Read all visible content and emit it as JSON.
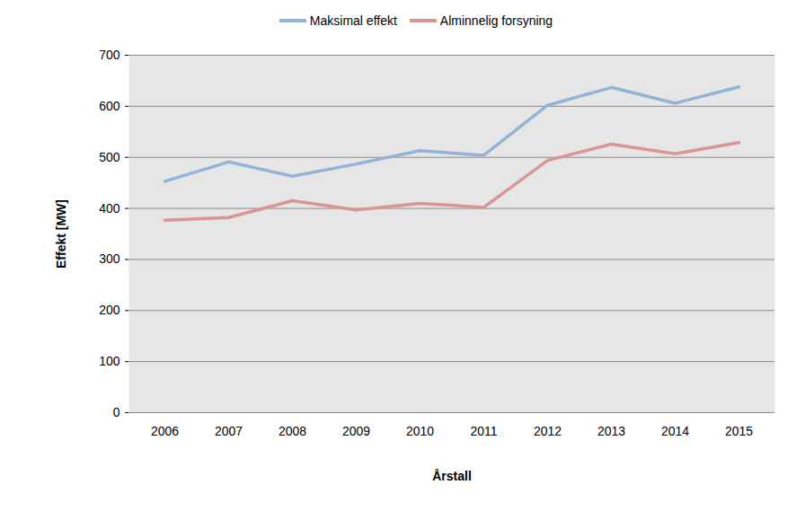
{
  "chart_data": {
    "type": "line",
    "x_label": "Årstall",
    "y_label": "Effekt [MW]",
    "categories": [
      "2006",
      "2007",
      "2008",
      "2009",
      "2010",
      "2011",
      "2012",
      "2013",
      "2014",
      "2015"
    ],
    "series": [
      {
        "name": "Maksimal effekt",
        "color": "#95b3d7",
        "values": [
          453,
          491,
          463,
          487,
          513,
          504,
          602,
          637,
          606,
          638
        ]
      },
      {
        "name": "Alminnelig forsyning",
        "color": "#d99694",
        "values": [
          377,
          382,
          415,
          397,
          410,
          402,
          494,
          526,
          507,
          529
        ]
      }
    ],
    "ylim": [
      0,
      700
    ],
    "yticks": [
      0,
      100,
      200,
      300,
      400,
      500,
      600,
      700
    ],
    "grid": true,
    "legend": "top"
  }
}
